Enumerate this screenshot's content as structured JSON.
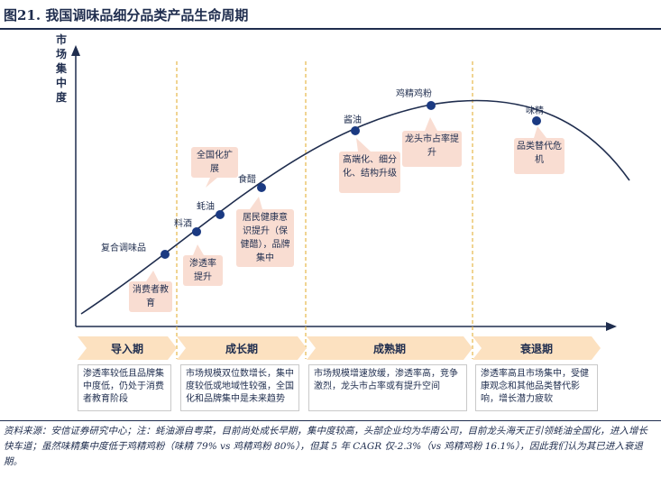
{
  "title": "图21. 我国调味品细分品类产品生命周期",
  "y_axis_label": "市场集中度",
  "points": [
    {
      "label": "复合调味品"
    },
    {
      "label": "料酒"
    },
    {
      "label": "蚝油"
    },
    {
      "label": "食醋"
    },
    {
      "label": "酱油"
    },
    {
      "label": "鸡精鸡粉"
    },
    {
      "label": "味精"
    }
  ],
  "notes": [
    {
      "text": "全国化扩展"
    },
    {
      "text": "渗透率提升"
    },
    {
      "text": "消费者教育"
    },
    {
      "text": "居民健康意识提升（保健醋），品牌集中"
    },
    {
      "text": "高端化、细分化、结构升级"
    },
    {
      "text": "龙头市占率提升"
    },
    {
      "text": "品类替代危机"
    }
  ],
  "phases": [
    {
      "label": "导入期",
      "description": "渗透率较低且品牌集中度低，仍处于消费者教育阶段"
    },
    {
      "label": "成长期",
      "description": "市场规模双位数增长，集中度较低或地域性较强，全国化和品牌集中是未来趋势"
    },
    {
      "label": "成熟期",
      "description": "市场规模增速放缓，渗透率高，竞争激烈，龙头市占率或有提升空间"
    },
    {
      "label": "衰退期",
      "description": "渗透率高且市场集中，受健康观念和其他品类替代影响，增长潜力疲软"
    }
  ],
  "source": "资料来源：安信证券研究中心；注：蚝油源自粤菜，目前尚处成长早期，集中度较高，头部企业均为华南公司，目前龙头海天正引领蚝油全国化，进入增长快车道；虽然味精集中度低于鸡精鸡粉（味精 79% vs 鸡精鸡粉 80%），但其 5 年 CAGR 仅-2.3%（vs 鸡精鸡粉 16.1%），因此我们认为其已进入衰退期。",
  "colors": {
    "navy": "#1f2d4e",
    "dot": "#1b3a82",
    "note_fill": "#f9ddd2",
    "phase_fill": "#fce1c0",
    "divider": "#e6b84a"
  }
}
